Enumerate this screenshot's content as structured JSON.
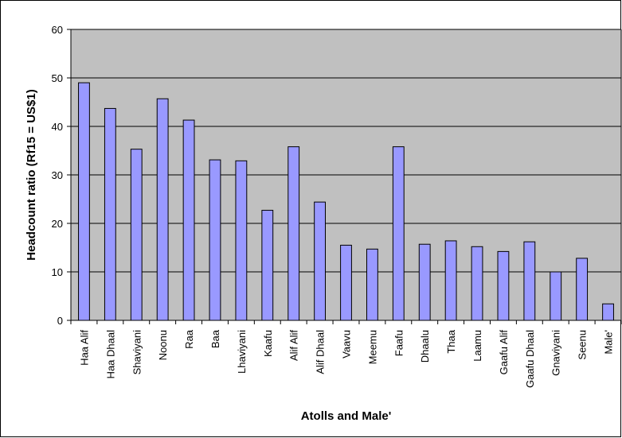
{
  "chart_data": {
    "type": "bar",
    "title": "",
    "xlabel": "Atolls and Male'",
    "ylabel": "Headcount ratio (Rf15 = US$1)",
    "ylim": [
      0,
      60
    ],
    "yticks": [
      0,
      10,
      20,
      30,
      40,
      50,
      60
    ],
    "grid": true,
    "legend": "none",
    "categories": [
      "Haa Alif",
      "Haa Dhaal",
      "Shaviyani",
      "Noonu",
      "Raa",
      "Baa",
      "Lhaviyani",
      "Kaafu",
      "Alif Alif",
      "Alif Dhaal",
      "Vaavu",
      "Meemu",
      "Faafu",
      "Dhaalu",
      "Thaa",
      "Laamu",
      "Gaafu Alif",
      "Gaafu Dhaal",
      "Gnaviyani",
      "Seenu",
      "Male'"
    ],
    "values": [
      49.0,
      43.7,
      35.3,
      45.7,
      41.3,
      33.1,
      32.9,
      22.7,
      35.8,
      24.4,
      15.5,
      14.7,
      35.8,
      15.7,
      16.4,
      15.2,
      14.2,
      16.2,
      10.0,
      12.8,
      3.4
    ],
    "colors": {
      "bar_fill": "#9999ff",
      "bar_stroke": "#000000",
      "plot_background": "#c0c0c0",
      "gridline": "#000000"
    }
  }
}
